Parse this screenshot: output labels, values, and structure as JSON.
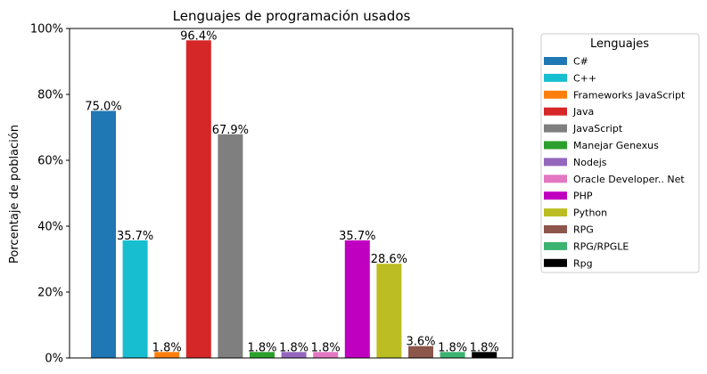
{
  "chart_data": {
    "type": "bar",
    "title": "Lenguajes de programación usados",
    "xlabel": "",
    "ylabel": "Porcentaje de población",
    "ylim": [
      0,
      100
    ],
    "yticks": [
      "0%",
      "20%",
      "40%",
      "60%",
      "80%",
      "100%"
    ],
    "ytick_values": [
      0,
      20,
      40,
      60,
      80,
      100
    ],
    "grid": false,
    "legend_title": "Lenguajes",
    "legend_placement": "outside-right",
    "categories": [
      "C#",
      "C++",
      "Frameworks JavaScript",
      "Java",
      "JavaScript",
      "Manejar Genexus",
      "Nodejs",
      "Oracle Developer.. Net",
      "PHP",
      "Python",
      "RPG",
      "RPG/RPGLE",
      "Rpg"
    ],
    "values": [
      75.0,
      35.7,
      1.8,
      96.4,
      67.9,
      1.8,
      1.8,
      1.8,
      35.7,
      28.6,
      3.6,
      1.8,
      1.8
    ],
    "value_labels": [
      "75.0%",
      "35.7%",
      "1.8%",
      "96.4%",
      "67.9%",
      "1.8%",
      "1.8%",
      "1.8%",
      "35.7%",
      "28.6%",
      "3.6%",
      "1.8%",
      "1.8%"
    ],
    "colors": [
      "#1f77b4",
      "#17becf",
      "#ff7f0e",
      "#d62728",
      "#7f7f7f",
      "#2ca02c",
      "#9467bd",
      "#e377c2",
      "#c000c0",
      "#bcbd22",
      "#8c564b",
      "#3cb371",
      "#000000"
    ]
  }
}
